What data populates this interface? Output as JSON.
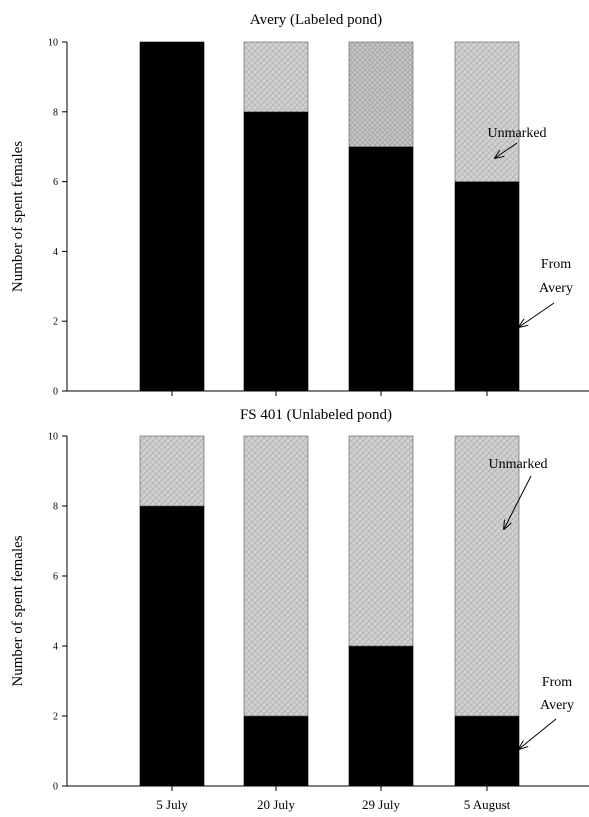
{
  "chart_data": [
    {
      "type": "bar",
      "stacked": true,
      "title": "Avery (Labeled pond)",
      "ylabel": "Number of spent females",
      "xlabel": "",
      "ylim": [
        0,
        10
      ],
      "yticks": [
        0,
        2,
        4,
        6,
        8,
        10
      ],
      "categories": [
        "5 July",
        "20 July",
        "29 July",
        "5 August"
      ],
      "show_xtick_labels": false,
      "series": [
        {
          "values": [
            10,
            8,
            7,
            6
          ]
        },
        {
          "values": [
            0,
            2,
            3,
            4
          ]
        }
      ],
      "annotations": {
        "unmarked": "Unmarked",
        "from_line1": "From",
        "from_line2": "Avery"
      },
      "grid": false
    },
    {
      "type": "bar",
      "stacked": true,
      "title": "FS 401 (Unlabeled pond)",
      "ylabel": "Number of spent females",
      "xlabel": "",
      "ylim": [
        0,
        10
      ],
      "yticks": [
        0,
        2,
        4,
        6,
        8,
        10
      ],
      "categories": [
        "5 July",
        "20 July",
        "29 July",
        "5 August"
      ],
      "show_xtick_labels": true,
      "series": [
        {
          "values": [
            8,
            2,
            4,
            2
          ]
        },
        {
          "values": [
            2,
            8,
            6,
            8
          ]
        }
      ],
      "annotations": {
        "unmarked": "Unmarked",
        "from_line1": "From",
        "from_line2": "Avery"
      },
      "grid": false
    }
  ],
  "colors": {
    "from_avery": "#000000",
    "unmarked_base": "#d2d2d2",
    "unmarked_pattern": "#b4b4b4"
  }
}
